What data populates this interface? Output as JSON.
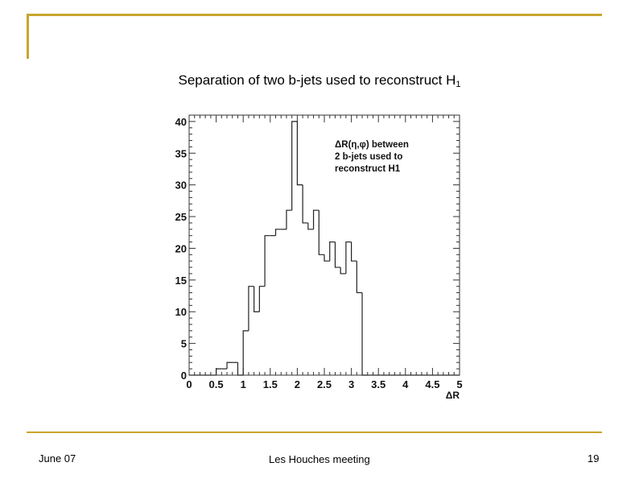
{
  "slide": {
    "title": "Separation of two b-jets used to reconstruct H",
    "title_subscript": "1",
    "footer_left": "June 07",
    "footer_center": "Les Houches meeting",
    "page_number": "19",
    "accent_color": "#c9a52c"
  },
  "chart_data": {
    "type": "bar",
    "histogram": true,
    "xlabel": "ΔR",
    "ylabel": "",
    "xlim": [
      0,
      5
    ],
    "ylim": [
      0,
      41
    ],
    "x_ticks": [
      "0",
      "0.5",
      "1",
      "1.5",
      "2",
      "2.5",
      "3",
      "3.5",
      "4",
      "4.5",
      "5"
    ],
    "y_ticks": [
      "0",
      "5",
      "10",
      "15",
      "20",
      "25",
      "30",
      "35",
      "40"
    ],
    "legend_lines": [
      "ΔR(η,φ) between",
      "2 b-jets used  to",
      "reconstruct H1"
    ],
    "bin_width": 0.1,
    "bin_edges_start": 0,
    "values": [
      0,
      0,
      0,
      0,
      0,
      1,
      1,
      2,
      2,
      0,
      7,
      14,
      10,
      14,
      22,
      22,
      23,
      23,
      26,
      40,
      30,
      24,
      23,
      26,
      19,
      18,
      21,
      17,
      16,
      21,
      18,
      13,
      0,
      0,
      0,
      0,
      0,
      0,
      0,
      0,
      0,
      0,
      0,
      0,
      0,
      0,
      0,
      0,
      0,
      0
    ],
    "line_color": "#222222",
    "grid": false
  }
}
